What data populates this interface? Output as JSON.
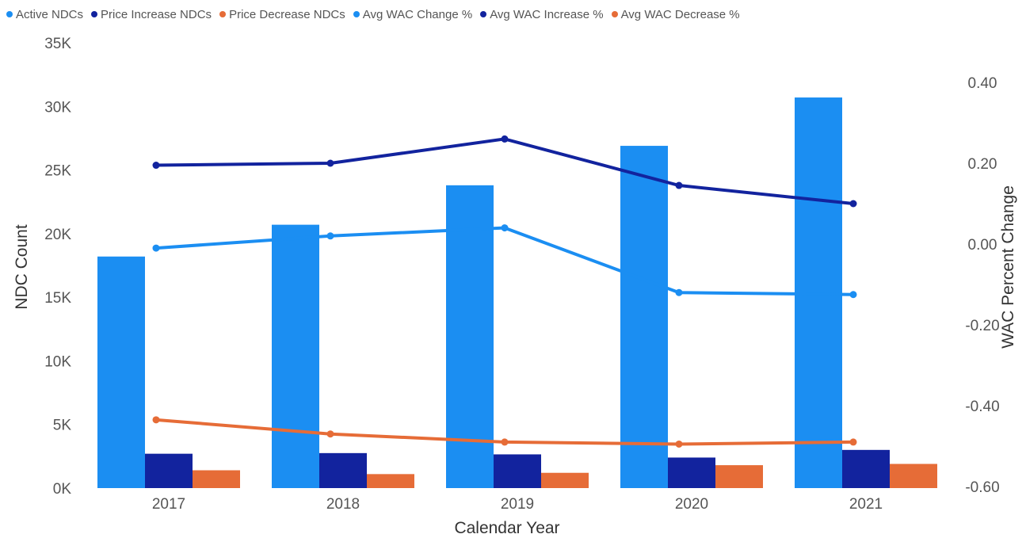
{
  "chart_data": {
    "type": "bar",
    "title": "",
    "xlabel": "Calendar Year",
    "ylabel": "NDC Count",
    "y2label": "WAC Percent Change",
    "categories": [
      "2017",
      "2018",
      "2019",
      "2020",
      "2021"
    ],
    "ylim": [
      0,
      35000
    ],
    "yticks": [
      "0K",
      "5K",
      "10K",
      "15K",
      "20K",
      "25K",
      "30K",
      "35K"
    ],
    "y2lim": [
      -0.6,
      0.4
    ],
    "y2ticks": [
      "-0.60",
      "-0.40",
      "-0.20",
      "0.00",
      "0.20",
      "0.40"
    ],
    "legend_position": "top-left",
    "grid": false,
    "series": [
      {
        "name": "Active NDCs",
        "kind": "bar",
        "axis": "left",
        "color": "#1b8ef2",
        "values": [
          18200,
          20700,
          23800,
          26900,
          30700
        ]
      },
      {
        "name": "Price Increase NDCs",
        "kind": "bar",
        "axis": "left",
        "color": "#12239e",
        "values": [
          2700,
          2750,
          2650,
          2400,
          3000
        ]
      },
      {
        "name": "Price Decrease NDCs",
        "kind": "bar",
        "axis": "left",
        "color": "#e66c37",
        "values": [
          1400,
          1100,
          1200,
          1800,
          1900
        ]
      },
      {
        "name": "Avg WAC Change %",
        "kind": "line",
        "axis": "right",
        "color": "#1b8ef2",
        "values": [
          -0.01,
          0.02,
          0.04,
          -0.12,
          -0.125
        ]
      },
      {
        "name": "Avg WAC Increase %",
        "kind": "line",
        "axis": "right",
        "color": "#12239e",
        "values": [
          0.195,
          0.2,
          0.26,
          0.145,
          0.1
        ]
      },
      {
        "name": "Avg WAC Decrease %",
        "kind": "line",
        "axis": "right",
        "color": "#e66c37",
        "values": [
          -0.435,
          -0.47,
          -0.49,
          -0.495,
          -0.49
        ]
      }
    ]
  }
}
